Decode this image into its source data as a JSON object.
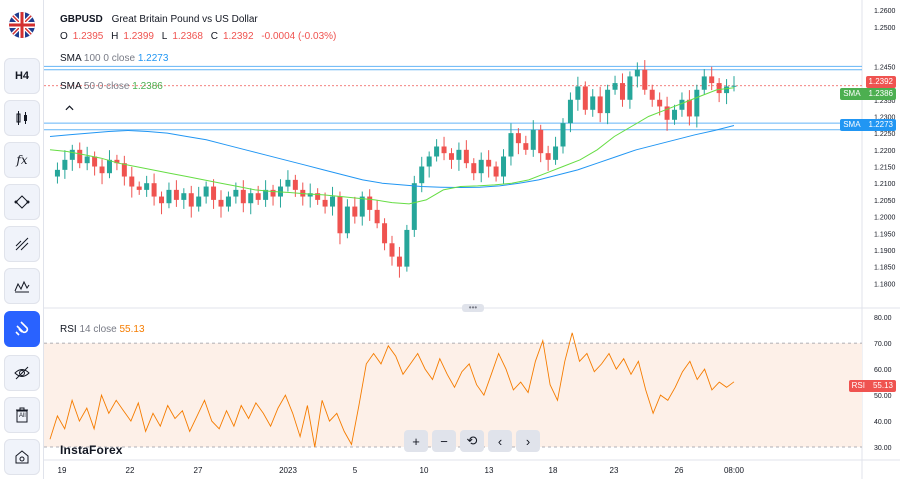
{
  "sidebar": {
    "items": [
      {
        "name": "flag-gbpusd",
        "label": ""
      },
      {
        "name": "timeframe-h4",
        "label": "H4"
      },
      {
        "name": "chart-type",
        "label": ""
      },
      {
        "name": "indicators",
        "label": "fx"
      },
      {
        "name": "drawing-tools",
        "label": ""
      },
      {
        "name": "line-tools",
        "label": ""
      },
      {
        "name": "patterns",
        "label": ""
      },
      {
        "name": "magnet",
        "label": ""
      },
      {
        "name": "hide-drawings",
        "label": ""
      },
      {
        "name": "delete-all",
        "label": "All"
      },
      {
        "name": "snapshot",
        "label": ""
      }
    ]
  },
  "header": {
    "symbol": "GBPUSD",
    "description": "Great Britain Pound vs US Dollar",
    "ohlc": {
      "o_label": "O",
      "o": "1.2395",
      "h_label": "H",
      "h": "1.2399",
      "l_label": "L",
      "l": "1.2368",
      "c_label": "C",
      "c": "1.2392",
      "change": "-0.0004 (-0.03%)"
    }
  },
  "indicators": {
    "sma100": {
      "name": "SMA",
      "params": "100 0 close",
      "value": "1.2273",
      "color": "#2196f3"
    },
    "sma50": {
      "name": "SMA",
      "params": "50 0 close",
      "value": "1.2386",
      "color": "#4caf50"
    },
    "rsi": {
      "name": "RSI",
      "params": "14 close",
      "value": "55.13",
      "color": "#f57c00"
    }
  },
  "price_tags": {
    "last": {
      "value": "1.2392",
      "color": "#ef5350"
    },
    "sma50": {
      "label": "SMA",
      "value": "1.2386",
      "color": "#4caf50"
    },
    "sma100": {
      "label": "SMA",
      "value": "1.2273",
      "color": "#2196f3"
    },
    "rsi": {
      "label": "RSI",
      "value": "55.13",
      "color": "#ef5350"
    }
  },
  "brand": "InstaForex",
  "nav": {
    "zoom_in": "+",
    "zoom_out": "−",
    "reset": "⟲",
    "left": "‹",
    "right": "›"
  },
  "chart_data": [
    {
      "type": "candlestick",
      "title": "GBPUSD",
      "ylim": [
        1.175,
        1.2625
      ],
      "yticks": [
        "1.2600",
        "1.2500",
        "1.2450",
        "1.2400",
        "1.2350",
        "1.2300",
        "1.2250",
        "1.2200",
        "1.2150",
        "1.2100",
        "1.2050",
        "1.2000",
        "1.1950",
        "1.1900",
        "1.1850",
        "1.1800"
      ],
      "xticks": [
        "19",
        "22",
        "27",
        "2023",
        "5",
        "10",
        "13",
        "18",
        "23",
        "26",
        "08:00"
      ],
      "close_path": [
        1.212,
        1.214,
        1.217,
        1.22,
        1.216,
        1.218,
        1.215,
        1.213,
        1.217,
        1.216,
        1.212,
        1.209,
        1.208,
        1.21,
        1.206,
        1.204,
        1.208,
        1.205,
        1.207,
        1.203,
        1.206,
        1.209,
        1.205,
        1.203,
        1.206,
        1.208,
        1.204,
        1.207,
        1.205,
        1.208,
        1.206,
        1.209,
        1.211,
        1.208,
        1.206,
        1.207,
        1.205,
        1.203,
        1.206,
        1.195,
        1.203,
        1.2,
        1.206,
        1.202,
        1.198,
        1.192,
        1.188,
        1.185,
        1.196,
        1.21,
        1.215,
        1.218,
        1.221,
        1.219,
        1.217,
        1.22,
        1.216,
        1.213,
        1.217,
        1.215,
        1.212,
        1.218,
        1.225,
        1.222,
        1.22,
        1.226,
        1.219,
        1.217,
        1.221,
        1.228,
        1.235,
        1.239,
        1.232,
        1.236,
        1.231,
        1.238,
        1.24,
        1.235,
        1.242,
        1.244,
        1.238,
        1.235,
        1.233,
        1.229,
        1.232,
        1.235,
        1.23,
        1.238,
        1.242,
        1.24,
        1.237,
        1.239,
        1.2392
      ],
      "sma50_path": [
        1.22,
        1.2195,
        1.2185,
        1.2175,
        1.216,
        1.215,
        1.214,
        1.213,
        1.212,
        1.211,
        1.21,
        1.209,
        1.208,
        1.2075,
        1.2072,
        1.2068,
        1.2065,
        1.206,
        1.2055,
        1.205,
        1.2042,
        1.2038,
        1.205,
        1.208,
        1.209,
        1.2092,
        1.2095,
        1.21,
        1.211,
        1.213,
        1.215,
        1.217,
        1.22,
        1.224,
        1.227,
        1.23,
        1.232,
        1.234,
        1.236,
        1.238,
        1.2386
      ],
      "sma100_path": [
        1.224,
        1.2245,
        1.225,
        1.2255,
        1.2258,
        1.2255,
        1.225,
        1.224,
        1.223,
        1.2215,
        1.22,
        1.2185,
        1.217,
        1.2155,
        1.214,
        1.2125,
        1.211,
        1.21,
        1.2095,
        1.209,
        1.2088,
        1.2087,
        1.2088,
        1.2092,
        1.21,
        1.211,
        1.2125,
        1.214,
        1.216,
        1.218,
        1.22,
        1.2215,
        1.223,
        1.2245,
        1.2258,
        1.2273
      ],
      "hlines": [
        1.245,
        1.244,
        1.228,
        1.226
      ],
      "last_price": 1.2392
    },
    {
      "type": "line",
      "title": "RSI",
      "ylim": [
        25,
        82
      ],
      "yticks": [
        "80.00",
        "70.00",
        "60.00",
        "50.00",
        "40.00",
        "30.00"
      ],
      "bands": [
        30,
        70
      ],
      "values": [
        33,
        42,
        37,
        48,
        40,
        45,
        37,
        50,
        43,
        48,
        44,
        40,
        47,
        36,
        43,
        38,
        46,
        41,
        44,
        36,
        42,
        48,
        40,
        37,
        44,
        38,
        46,
        41,
        47,
        43,
        38,
        45,
        50,
        43,
        34,
        46,
        30,
        48,
        40,
        43,
        36,
        31,
        46,
        62,
        66,
        62,
        69,
        65,
        58,
        62,
        66,
        60,
        56,
        64,
        58,
        53,
        59,
        62,
        54,
        50,
        58,
        66,
        60,
        52,
        55,
        51,
        63,
        71,
        54,
        48,
        63,
        74,
        63,
        66,
        59,
        62,
        66,
        60,
        64,
        58,
        63,
        52,
        43,
        50,
        48,
        53,
        59,
        63,
        56,
        60,
        52,
        55,
        53,
        55.13
      ],
      "last_value": 55.13
    }
  ]
}
